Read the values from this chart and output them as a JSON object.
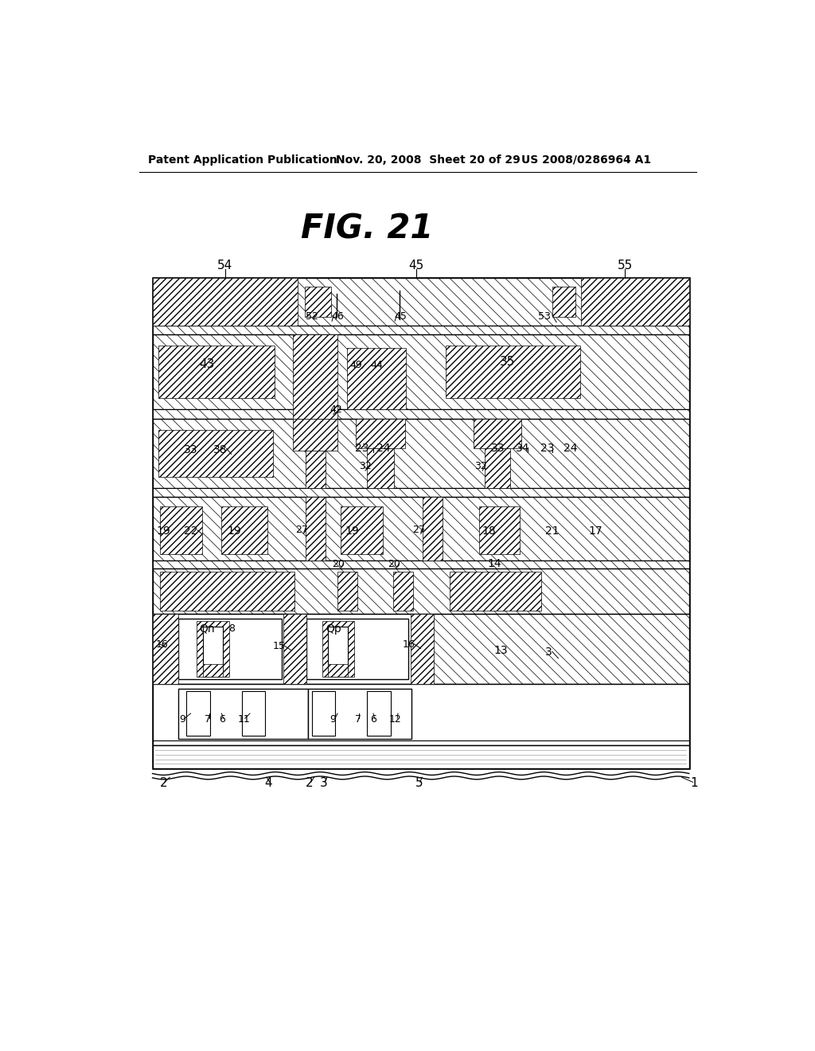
{
  "header_left": "Patent Application Publication",
  "header_mid": "Nov. 20, 2008  Sheet 20 of 29",
  "header_right": "US 2008/0286964 A1",
  "figure_title": "FIG. 21",
  "bg_color": "#ffffff",
  "line_color": "#000000"
}
